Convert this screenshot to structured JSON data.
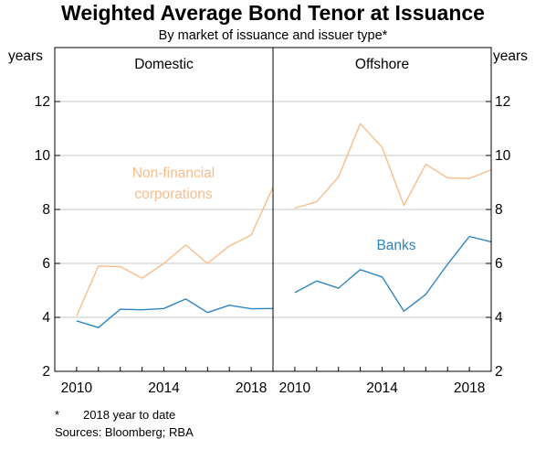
{
  "title": "Weighted Average Bond Tenor at Issuance",
  "subtitle": "By market of issuance and issuer type*",
  "footnote_marker": "*",
  "footnote_text": "2018 year to date",
  "sources": "Sources:  Bloomberg; RBA",
  "colors": {
    "non_financial": "#F8BD8A",
    "banks": "#2E86C1",
    "axis": "#000000",
    "grid": "#C8C8C8"
  },
  "chart_data": {
    "type": "line",
    "y_unit_left": "years",
    "y_unit_right": "years",
    "ylim": [
      2,
      14
    ],
    "yticks": [
      2,
      4,
      6,
      8,
      10,
      12
    ],
    "xlim": [
      2009,
      2019
    ],
    "xticks": [
      2010,
      2014,
      2018
    ],
    "grid": true,
    "panels": [
      {
        "title": "Domestic",
        "annotations": [
          {
            "series": "non_financial",
            "lines": [
              "Non-financial",
              "corporations"
            ]
          }
        ],
        "series": [
          {
            "key": "non_financial",
            "x": [
              2010,
              2011,
              2012,
              2013,
              2014,
              2015,
              2016,
              2017,
              2018,
              2019
            ],
            "y": [
              4.05,
              5.9,
              5.88,
              5.45,
              6.0,
              6.68,
              6.0,
              6.65,
              7.05,
              8.82
            ]
          },
          {
            "key": "banks",
            "x": [
              2010,
              2011,
              2012,
              2013,
              2014,
              2015,
              2016,
              2017,
              2018,
              2019
            ],
            "y": [
              3.87,
              3.62,
              4.3,
              4.28,
              4.33,
              4.68,
              4.18,
              4.45,
              4.32,
              4.33
            ]
          }
        ]
      },
      {
        "title": "Offshore",
        "annotations": [
          {
            "series": "banks",
            "lines": [
              "Banks"
            ]
          }
        ],
        "series": [
          {
            "key": "non_financial",
            "x": [
              2010,
              2011,
              2012,
              2013,
              2014,
              2015,
              2016,
              2017,
              2018,
              2019
            ],
            "y": [
              8.05,
              8.28,
              9.2,
              11.18,
              10.3,
              8.15,
              9.67,
              9.17,
              9.15,
              9.47
            ]
          },
          {
            "key": "banks",
            "x": [
              2010,
              2011,
              2012,
              2013,
              2014,
              2015,
              2016,
              2017,
              2018,
              2019
            ],
            "y": [
              4.92,
              5.35,
              5.08,
              5.77,
              5.5,
              4.23,
              4.85,
              5.97,
              7.0,
              6.8
            ]
          }
        ]
      }
    ]
  }
}
